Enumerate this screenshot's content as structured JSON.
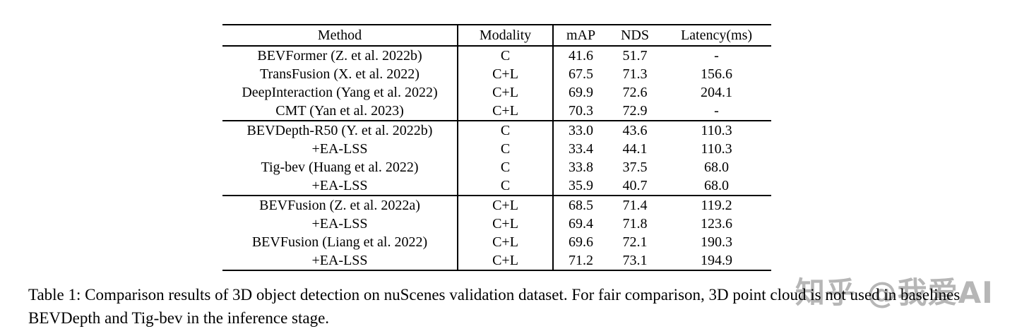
{
  "table": {
    "columns": [
      "Method",
      "Modality",
      "mAP",
      "NDS",
      "Latency(ms)"
    ],
    "rows": [
      {
        "method": "BEVFormer (Z. et al. 2022b)",
        "modality": "C",
        "map": "41.6",
        "nds": "51.7",
        "latency": "-"
      },
      {
        "method": "TransFusion (X. et al. 2022)",
        "modality": "C+L",
        "map": "67.5",
        "nds": "71.3",
        "latency": "156.6"
      },
      {
        "method": "DeepInteraction (Yang et al. 2022)",
        "modality": "C+L",
        "map": "69.9",
        "nds": "72.6",
        "latency": "204.1"
      },
      {
        "method": "CMT (Yan et al. 2023)",
        "modality": "C+L",
        "map": "70.3",
        "nds": "72.9",
        "latency": "-"
      },
      {
        "method": "BEVDepth-R50 (Y. et al. 2022b)",
        "modality": "C",
        "map": "33.0",
        "nds": "43.6",
        "latency": "110.3"
      },
      {
        "method": "+EA-LSS",
        "modality": "C",
        "map": "33.4",
        "nds": "44.1",
        "latency": "110.3"
      },
      {
        "method": "Tig-bev (Huang et al. 2022)",
        "modality": "C",
        "map": "33.8",
        "nds": "37.5",
        "latency": "68.0"
      },
      {
        "method": "+EA-LSS",
        "modality": "C",
        "map": "35.9",
        "nds": "40.7",
        "latency": "68.0"
      },
      {
        "method": "BEVFusion (Z. et al. 2022a)",
        "modality": "C+L",
        "map": "68.5",
        "nds": "71.4",
        "latency": "119.2"
      },
      {
        "method": "+EA-LSS",
        "modality": "C+L",
        "map": "69.4",
        "nds": "71.8",
        "latency": "123.6"
      },
      {
        "method": "BEVFusion (Liang et al. 2022)",
        "modality": "C+L",
        "map": "69.6",
        "nds": "72.1",
        "latency": "190.3"
      },
      {
        "method": "+EA-LSS",
        "modality": "C+L",
        "map": "71.2",
        "nds": "73.1",
        "latency": "194.9"
      }
    ]
  },
  "caption": {
    "text": "Table 1: Comparison results of 3D object detection on nuScenes validation dataset. For fair comparison, 3D point cloud is not used in baselines BEVDepth and Tig-bev in the inference stage."
  },
  "watermark": {
    "text": "知乎 @我爱AI"
  }
}
